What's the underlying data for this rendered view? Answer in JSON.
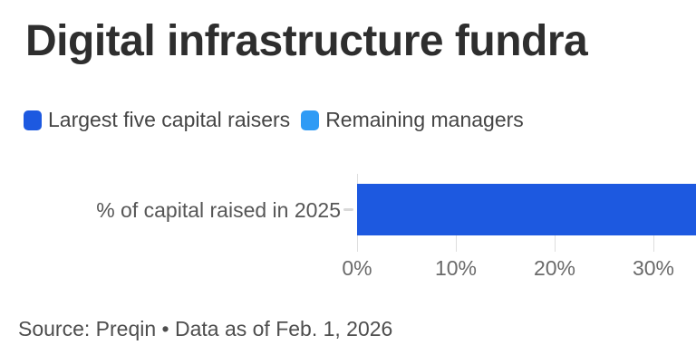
{
  "title": "Digital infrastructure fundra",
  "legend": {
    "items": [
      {
        "label": "Largest five capital raisers",
        "color": "#1d59e0"
      },
      {
        "label": "Remaining managers",
        "color": "#2f9bf5"
      }
    ]
  },
  "chart_data": {
    "type": "bar",
    "orientation": "horizontal",
    "title": "Digital infrastructure fundra",
    "categories": [
      "% of capital raised in 2025"
    ],
    "series": [
      {
        "name": "Largest five capital raisers",
        "color": "#1d59e0",
        "values": [
          34.3
        ],
        "clipped_at_right_edge": true
      }
    ],
    "xlabel": "",
    "ylabel": "",
    "x_ticks": [
      {
        "value": 0,
        "label": "0%"
      },
      {
        "value": 10,
        "label": "10%"
      },
      {
        "value": 20,
        "label": "20%"
      },
      {
        "value": 30,
        "label": "30%"
      }
    ],
    "xlim_visible": [
      0,
      34.3
    ],
    "grid": "vertical-ticks-below-bar",
    "legend_position": "top-left"
  },
  "source_line": "Source: Preqin • Data as of Feb. 1, 2026",
  "colors": {
    "largest_five_blue": "#1d59e0",
    "remaining_blue": "#2f9bf5",
    "title_text": "#2e2e2e",
    "axis_text": "#6a6a6a",
    "gridline": "#dedede",
    "background": "#ffffff"
  }
}
